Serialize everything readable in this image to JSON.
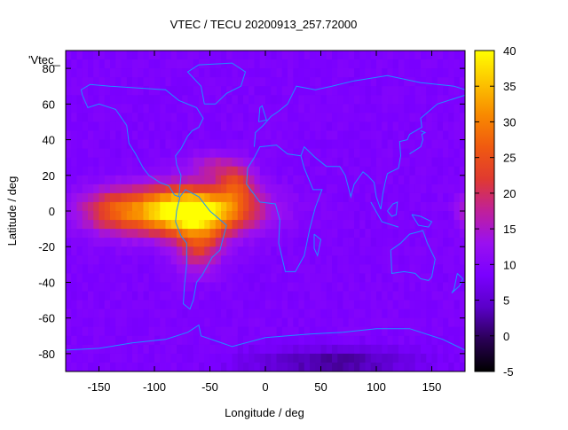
{
  "chart_data": {
    "type": "heatmap",
    "title": "VTEC / TECU 20200913_257.72000",
    "xlabel": "Longitude / deg",
    "ylabel": "Latitude / deg",
    "series_label": "'Vtec_",
    "xlim": [
      -180,
      180
    ],
    "ylim": [
      -90,
      90
    ],
    "x_ticks": [
      -150,
      -100,
      -50,
      0,
      50,
      100,
      150
    ],
    "y_ticks": [
      -80,
      -60,
      -40,
      -20,
      0,
      20,
      40,
      60,
      80
    ],
    "colorbar": {
      "range": [
        -5,
        40
      ],
      "ticks": [
        -5,
        0,
        5,
        10,
        15,
        20,
        25,
        30,
        35,
        40
      ],
      "palette": [
        "#000000",
        "#2a0055",
        "#5a00c8",
        "#7a00ff",
        "#9a10f0",
        "#c0209a",
        "#e03a30",
        "#f05a10",
        "#f88a00",
        "#fcc400",
        "#ffff00"
      ]
    },
    "background_level": 9,
    "anomalies": [
      {
        "name": "central-america-peak",
        "lon": -70,
        "lat": 0,
        "value": 36,
        "sigma_lon": 55,
        "sigma_lat": 13
      },
      {
        "name": "south-america-belt",
        "lon": -60,
        "lat": -20,
        "value": 12,
        "sigma_lon": 20,
        "sigma_lat": 14
      },
      {
        "name": "east-pacific-band",
        "lon": -140,
        "lat": 0,
        "value": 10,
        "sigma_lon": 30,
        "sigma_lat": 12
      },
      {
        "name": "atlantic-africa-crest",
        "lon": -25,
        "lat": 15,
        "value": 11,
        "sigma_lon": 15,
        "sigma_lat": 10
      },
      {
        "name": "north-atlantic-arm",
        "lon": -45,
        "lat": 25,
        "value": 7,
        "sigma_lon": 25,
        "sigma_lat": 8
      },
      {
        "name": "far-east-edge",
        "lon": 178,
        "lat": 0,
        "value": 6,
        "sigma_lon": 8,
        "sigma_lat": 10
      },
      {
        "name": "south-polar-low",
        "lon": 60,
        "lat": -85,
        "value": -7,
        "sigma_lon": 70,
        "sigma_lat": 8
      }
    ]
  }
}
